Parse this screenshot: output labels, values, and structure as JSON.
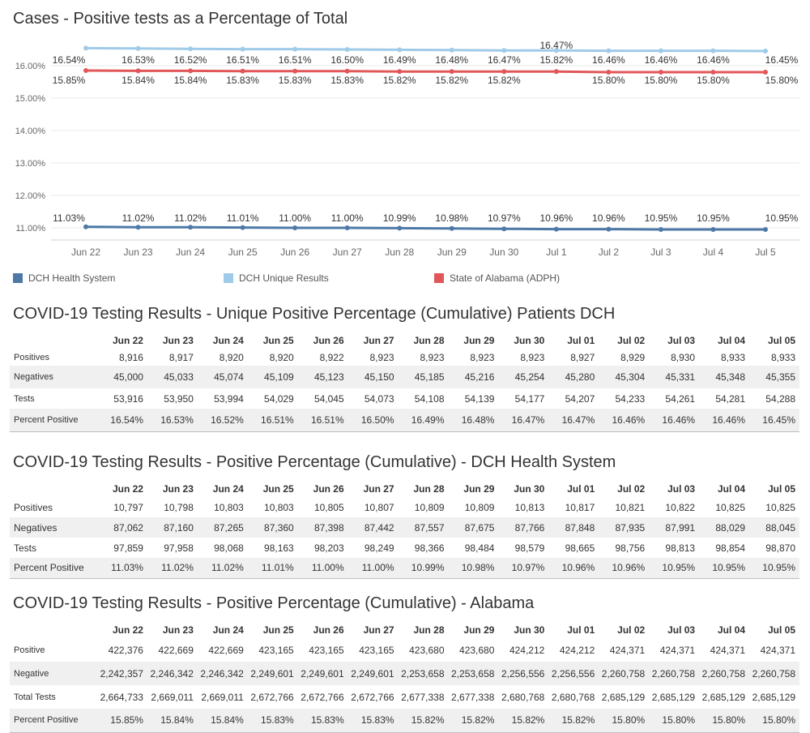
{
  "chart": {
    "title": "Cases - Positive tests as a Percentage of Total",
    "legend": [
      {
        "name": "DCH Health System",
        "color": "#4e79a7"
      },
      {
        "name": "DCH Unique Results",
        "color": "#a0cbe8"
      },
      {
        "name": "State of Alabama (ADPH)",
        "color": "#e15759"
      }
    ]
  },
  "chart_data": {
    "type": "line",
    "title": "Cases - Positive tests as a Percentage of Total",
    "x": [
      "Jun 22",
      "Jun 23",
      "Jun 24",
      "Jun 25",
      "Jun 26",
      "Jun 27",
      "Jun 28",
      "Jun 29",
      "Jun 30",
      "Jul 1",
      "Jul 2",
      "Jul 3",
      "Jul 4",
      "Jul 5"
    ],
    "y_ticks": [
      "11.00%",
      "12.00%",
      "13.00%",
      "14.00%",
      "15.00%",
      "16.00%"
    ],
    "ylim": [
      10.6,
      16.75
    ],
    "grid": true,
    "legend_position": "bottom",
    "series": [
      {
        "name": "DCH Unique Results",
        "color": "#a0cbe8",
        "values": [
          16.54,
          16.53,
          16.52,
          16.51,
          16.51,
          16.5,
          16.49,
          16.48,
          16.47,
          16.47,
          16.46,
          16.46,
          16.46,
          16.45
        ],
        "labels": [
          "16.54%",
          "16.53%",
          "16.52%",
          "16.51%",
          "16.51%",
          "16.50%",
          "16.49%",
          "16.48%",
          "16.47%",
          "16.47%",
          "16.46%",
          "16.46%",
          "16.46%",
          "16.45%"
        ]
      },
      {
        "name": "State of Alabama (ADPH)",
        "color": "#e15759",
        "values": [
          15.85,
          15.84,
          15.84,
          15.83,
          15.83,
          15.83,
          15.82,
          15.82,
          15.82,
          15.82,
          15.8,
          15.8,
          15.8,
          15.8
        ],
        "labels": [
          "15.85%",
          "15.84%",
          "15.84%",
          "15.83%",
          "15.83%",
          "15.83%",
          "15.82%",
          "15.82%",
          "15.82%",
          "15.82%",
          "15.80%",
          "15.80%",
          "15.80%",
          "15.80%"
        ]
      },
      {
        "name": "DCH Health System",
        "color": "#4e79a7",
        "values": [
          11.03,
          11.02,
          11.02,
          11.01,
          11.0,
          11.0,
          10.99,
          10.98,
          10.97,
          10.96,
          10.96,
          10.95,
          10.95,
          10.95
        ],
        "labels": [
          "11.03%",
          "11.02%",
          "11.02%",
          "11.01%",
          "11.00%",
          "11.00%",
          "10.99%",
          "10.98%",
          "10.97%",
          "10.96%",
          "10.96%",
          "10.95%",
          "10.95%",
          "10.95%"
        ]
      }
    ]
  },
  "tables": [
    {
      "title": "COVID-19 Testing Results - Unique Positive Percentage (Cumulative) Patients DCH",
      "columns": [
        "Jun 22",
        "Jun 23",
        "Jun 24",
        "Jun 25",
        "Jun 26",
        "Jun 27",
        "Jun 28",
        "Jun 29",
        "Jun 30",
        "Jul 01",
        "Jul 02",
        "Jul 03",
        "Jul 04",
        "Jul 05"
      ],
      "rows": [
        {
          "label": "Positives",
          "values": [
            "8,916",
            "8,917",
            "8,920",
            "8,920",
            "8,922",
            "8,923",
            "8,923",
            "8,923",
            "8,923",
            "8,927",
            "8,929",
            "8,930",
            "8,933",
            "8,933"
          ]
        },
        {
          "label": "Negatives",
          "values": [
            "45,000",
            "45,033",
            "45,074",
            "45,109",
            "45,123",
            "45,150",
            "45,185",
            "45,216",
            "45,254",
            "45,280",
            "45,304",
            "45,331",
            "45,348",
            "45,355"
          ]
        },
        {
          "label": "Tests",
          "values": [
            "53,916",
            "53,950",
            "53,994",
            "54,029",
            "54,045",
            "54,073",
            "54,108",
            "54,139",
            "54,177",
            "54,207",
            "54,233",
            "54,261",
            "54,281",
            "54,288"
          ]
        },
        {
          "label": "Percent Positive",
          "values": [
            "16.54%",
            "16.53%",
            "16.52%",
            "16.51%",
            "16.51%",
            "16.50%",
            "16.49%",
            "16.48%",
            "16.47%",
            "16.47%",
            "16.46%",
            "16.46%",
            "16.46%",
            "16.45%"
          ]
        }
      ]
    },
    {
      "title": "COVID-19 Testing Results - Positive Percentage (Cumulative) - DCH Health System",
      "columns": [
        "Jun 22",
        "Jun 23",
        "Jun 24",
        "Jun 25",
        "Jun 26",
        "Jun 27",
        "Jun 28",
        "Jun 29",
        "Jun 30",
        "Jul 01",
        "Jul 02",
        "Jul 03",
        "Jul 04",
        "Jul 05"
      ],
      "rows": [
        {
          "label": "Positives",
          "values": [
            "10,797",
            "10,798",
            "10,803",
            "10,803",
            "10,805",
            "10,807",
            "10,809",
            "10,809",
            "10,813",
            "10,817",
            "10,821",
            "10,822",
            "10,825",
            "10,825"
          ]
        },
        {
          "label": "Negatives",
          "values": [
            "87,062",
            "87,160",
            "87,265",
            "87,360",
            "87,398",
            "87,442",
            "87,557",
            "87,675",
            "87,766",
            "87,848",
            "87,935",
            "87,991",
            "88,029",
            "88,045"
          ]
        },
        {
          "label": "Tests",
          "values": [
            "97,859",
            "97,958",
            "98,068",
            "98,163",
            "98,203",
            "98,249",
            "98,366",
            "98,484",
            "98,579",
            "98,665",
            "98,756",
            "98,813",
            "98,854",
            "98,870"
          ]
        },
        {
          "label": "Percent Positive",
          "values": [
            "11.03%",
            "11.02%",
            "11.02%",
            "11.01%",
            "11.00%",
            "11.00%",
            "10.99%",
            "10.98%",
            "10.97%",
            "10.96%",
            "10.96%",
            "10.95%",
            "10.95%",
            "10.95%"
          ]
        }
      ]
    },
    {
      "title": "COVID-19 Testing Results - Positive Percentage (Cumulative) - Alabama",
      "columns": [
        "Jun 22",
        "Jun 23",
        "Jun 24",
        "Jun 25",
        "Jun 26",
        "Jun 27",
        "Jun 28",
        "Jun 29",
        "Jun 30",
        "Jul 01",
        "Jul 02",
        "Jul 03",
        "Jul 04",
        "Jul 05"
      ],
      "rows": [
        {
          "label": "Positive",
          "values": [
            "422,376",
            "422,669",
            "422,669",
            "423,165",
            "423,165",
            "423,165",
            "423,680",
            "423,680",
            "424,212",
            "424,212",
            "424,371",
            "424,371",
            "424,371",
            "424,371"
          ]
        },
        {
          "label": "Negative",
          "values": [
            "2,242,357",
            "2,246,342",
            "2,246,342",
            "2,249,601",
            "2,249,601",
            "2,249,601",
            "2,253,658",
            "2,253,658",
            "2,256,556",
            "2,256,556",
            "2,260,758",
            "2,260,758",
            "2,260,758",
            "2,260,758"
          ]
        },
        {
          "label": "Total Tests",
          "values": [
            "2,664,733",
            "2,669,011",
            "2,669,011",
            "2,672,766",
            "2,672,766",
            "2,672,766",
            "2,677,338",
            "2,677,338",
            "2,680,768",
            "2,680,768",
            "2,685,129",
            "2,685,129",
            "2,685,129",
            "2,685,129"
          ]
        },
        {
          "label": "Percent Positive",
          "values": [
            "15.85%",
            "15.84%",
            "15.84%",
            "15.83%",
            "15.83%",
            "15.83%",
            "15.82%",
            "15.82%",
            "15.82%",
            "15.82%",
            "15.80%",
            "15.80%",
            "15.80%",
            "15.80%"
          ]
        }
      ]
    }
  ]
}
